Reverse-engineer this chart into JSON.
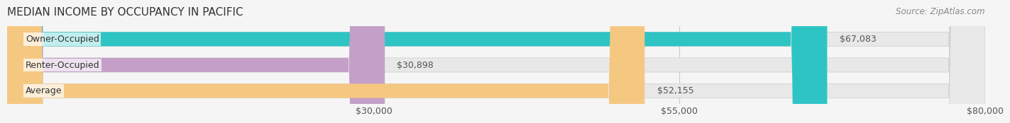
{
  "title": "MEDIAN INCOME BY OCCUPANCY IN PACIFIC",
  "source": "Source: ZipAtlas.com",
  "categories": [
    "Owner-Occupied",
    "Renter-Occupied",
    "Average"
  ],
  "values": [
    67083,
    30898,
    52155
  ],
  "bar_colors": [
    "#2ec4c4",
    "#c4a0c8",
    "#f5c882"
  ],
  "bar_edge_colors": [
    "#2ec4c4",
    "#c4a0c8",
    "#f5c882"
  ],
  "label_colors": [
    "#2ec4c4",
    "#c4a0c8",
    "#f5c882"
  ],
  "value_labels": [
    "$67,083",
    "$30,898",
    "$52,155"
  ],
  "xlim": [
    0,
    80000
  ],
  "xticks": [
    30000,
    55000,
    80000
  ],
  "xticklabels": [
    "$30,000",
    "$55,000",
    "$80,000"
  ],
  "background_color": "#f5f5f5",
  "bar_bg_color": "#e8e8e8",
  "title_fontsize": 11,
  "source_fontsize": 8.5,
  "tick_fontsize": 9,
  "label_fontsize": 9,
  "value_fontsize": 9
}
